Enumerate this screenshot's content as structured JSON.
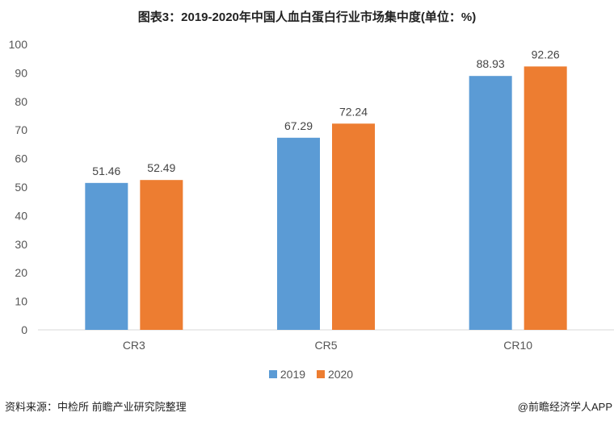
{
  "chart_data": {
    "type": "bar",
    "title": "图表3：2019-2020年中国人血白蛋白行业市场集中度(单位：%)",
    "categories": [
      "CR3",
      "CR5",
      "CR10"
    ],
    "series": [
      {
        "name": "2019",
        "values": [
          51.46,
          67.29,
          88.93
        ],
        "color": "#5B9BD5"
      },
      {
        "name": "2020",
        "values": [
          52.49,
          72.24,
          92.26
        ],
        "color": "#ED7D31"
      }
    ],
    "ylim": [
      0,
      100
    ],
    "yticks": [
      0,
      10,
      20,
      30,
      40,
      50,
      60,
      70,
      80,
      90,
      100
    ],
    "grid": false,
    "legend": "bottom"
  },
  "footer": {
    "source": "资料来源：中检所 前瞻产业研究院整理",
    "credit": "@前瞻经济学人APP"
  }
}
